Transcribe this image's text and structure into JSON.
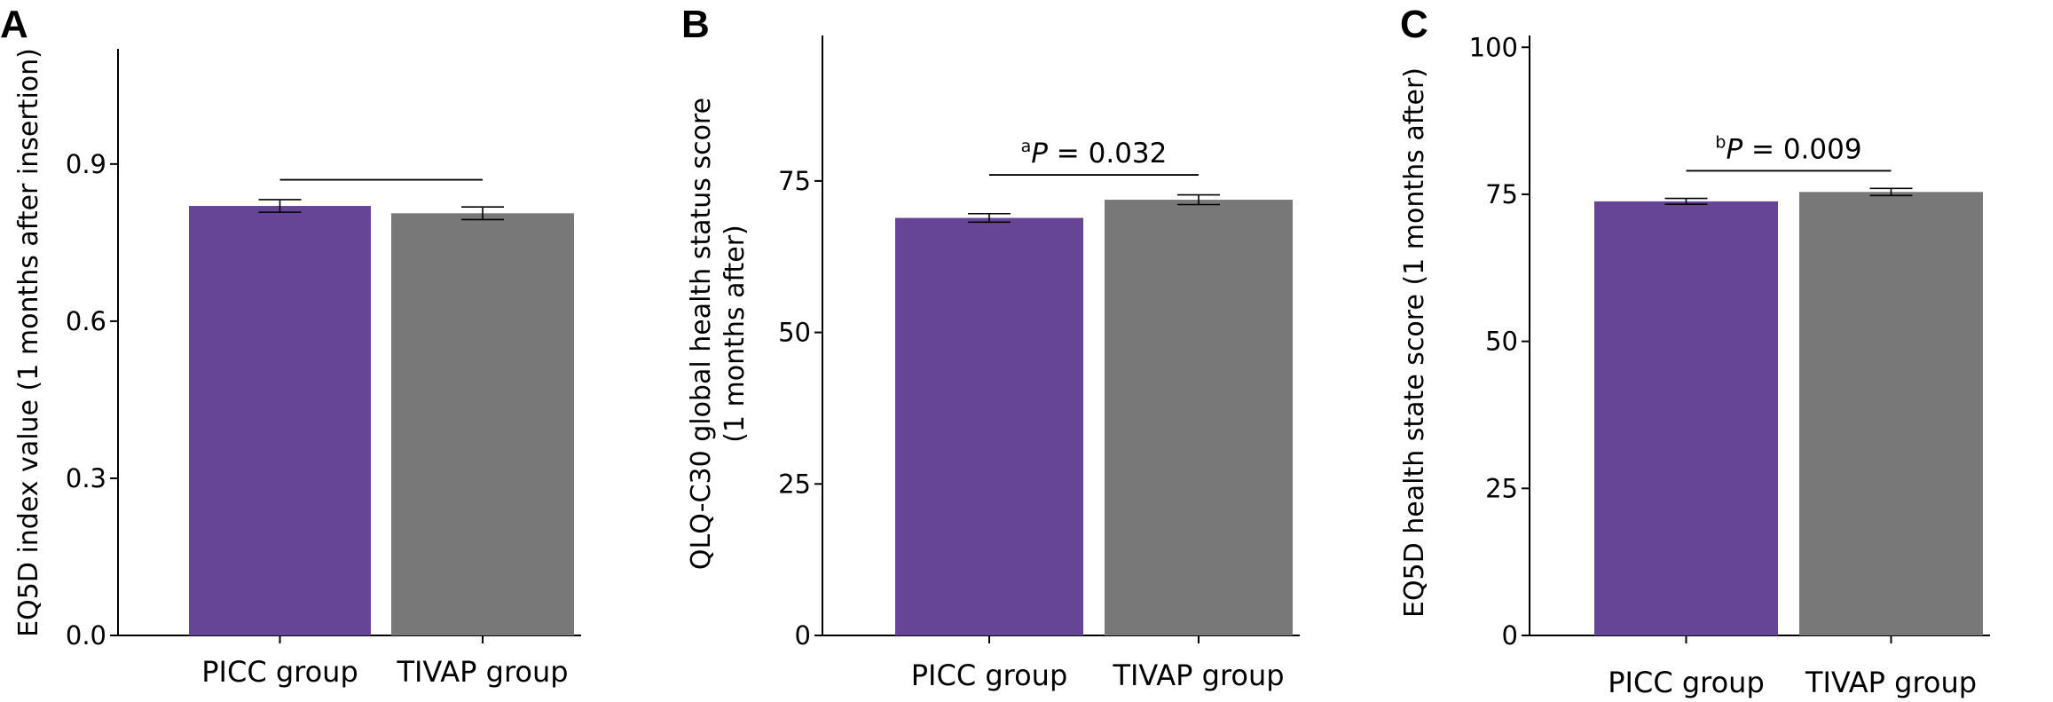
{
  "colors": {
    "picc": "#664496",
    "tivap": "#777877"
  },
  "chart_data": [
    {
      "type": "bar",
      "panel": "A",
      "categories": [
        "PICC group",
        "TIVAP group"
      ],
      "values": [
        0.82,
        0.806
      ],
      "errors": [
        0.012,
        0.012
      ],
      "ylabel": "EQ5D index value (1 months after insertion)",
      "ylim": [
        0,
        1.12
      ],
      "yticks": [
        0.0,
        0.3,
        0.6,
        0.9
      ],
      "ytick_labels": [
        "0.0",
        "0.3",
        "0.6",
        "0.9"
      ],
      "significance": {
        "text_prefix": "",
        "text_main": "",
        "y": 0.87
      }
    },
    {
      "type": "bar",
      "panel": "B",
      "categories": [
        "PICC group",
        "TIVAP group"
      ],
      "values": [
        68.9,
        71.9
      ],
      "errors": [
        0.7,
        0.8
      ],
      "ylabel_lines": [
        "QLQ-C30 global health status score",
        "(1 months after)"
      ],
      "ylim": [
        0,
        99
      ],
      "yticks": [
        0,
        25,
        50,
        75
      ],
      "ytick_labels": [
        "0",
        "25",
        "50",
        "75"
      ],
      "significance": {
        "text_prefix": "a",
        "text_main": "P = 0.032",
        "y": 76
      }
    },
    {
      "type": "bar",
      "panel": "C",
      "categories": [
        "PICC group",
        "TIVAP group"
      ],
      "values": [
        73.8,
        75.4
      ],
      "errors": [
        0.5,
        0.6
      ],
      "ylabel": "EQ5D health state score (1 months after)",
      "ylim": [
        0,
        102
      ],
      "yticks": [
        0,
        25,
        50,
        75,
        100
      ],
      "ytick_labels": [
        "0",
        "25",
        "50",
        "75",
        "100"
      ],
      "significance": {
        "text_prefix": "b",
        "text_main": "P = 0.009",
        "y": 79
      }
    }
  ]
}
